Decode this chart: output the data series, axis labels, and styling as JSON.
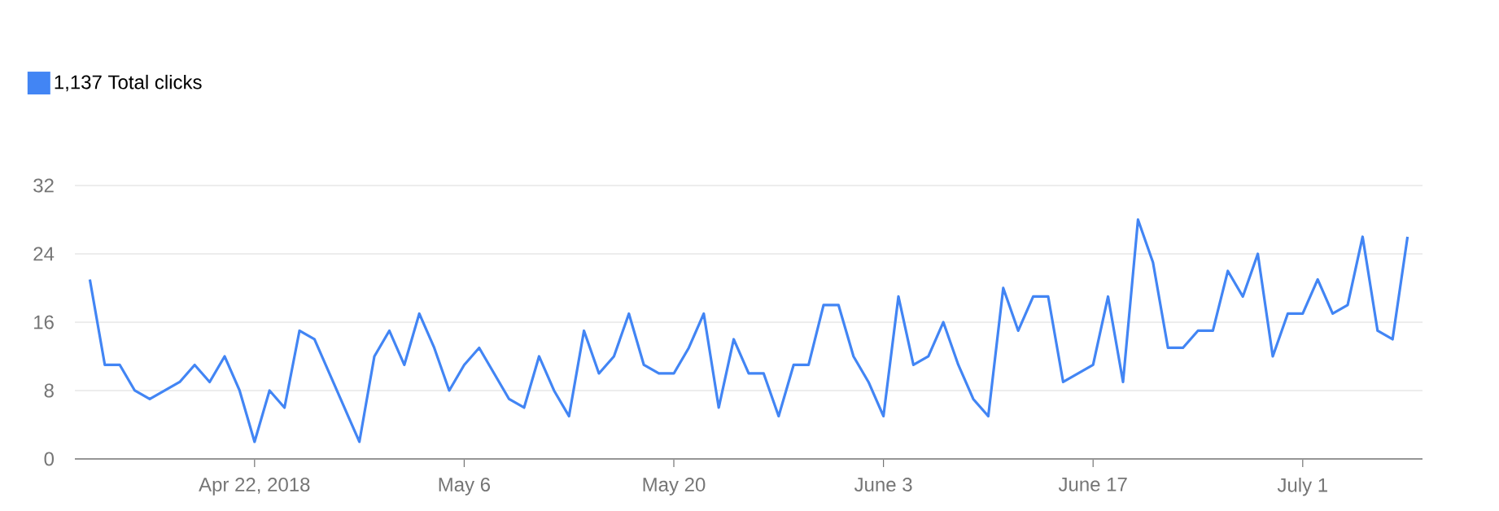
{
  "chart_data": {
    "type": "line",
    "x": [
      "2018-04-11",
      "2018-04-12",
      "2018-04-13",
      "2018-04-14",
      "2018-04-15",
      "2018-04-16",
      "2018-04-17",
      "2018-04-18",
      "2018-04-19",
      "2018-04-20",
      "2018-04-21",
      "2018-04-22",
      "2018-04-23",
      "2018-04-24",
      "2018-04-25",
      "2018-04-26",
      "2018-04-27",
      "2018-04-28",
      "2018-04-29",
      "2018-04-30",
      "2018-05-01",
      "2018-05-02",
      "2018-05-03",
      "2018-05-04",
      "2018-05-05",
      "2018-05-06",
      "2018-05-07",
      "2018-05-08",
      "2018-05-09",
      "2018-05-10",
      "2018-05-11",
      "2018-05-12",
      "2018-05-13",
      "2018-05-14",
      "2018-05-15",
      "2018-05-16",
      "2018-05-17",
      "2018-05-18",
      "2018-05-19",
      "2018-05-20",
      "2018-05-21",
      "2018-05-22",
      "2018-05-23",
      "2018-05-24",
      "2018-05-25",
      "2018-05-26",
      "2018-05-27",
      "2018-05-28",
      "2018-05-29",
      "2018-05-30",
      "2018-05-31",
      "2018-06-01",
      "2018-06-02",
      "2018-06-03",
      "2018-06-04",
      "2018-06-05",
      "2018-06-06",
      "2018-06-07",
      "2018-06-08",
      "2018-06-09",
      "2018-06-10",
      "2018-06-11",
      "2018-06-12",
      "2018-06-13",
      "2018-06-14",
      "2018-06-15",
      "2018-06-16",
      "2018-06-17",
      "2018-06-18",
      "2018-06-19",
      "2018-06-20",
      "2018-06-21",
      "2018-06-22",
      "2018-06-23",
      "2018-06-24",
      "2018-06-25",
      "2018-06-26",
      "2018-06-27",
      "2018-06-28",
      "2018-06-29",
      "2018-06-30",
      "2018-07-01",
      "2018-07-02",
      "2018-07-03",
      "2018-07-04",
      "2018-07-05",
      "2018-07-06",
      "2018-07-07",
      "2018-07-08"
    ],
    "series": [
      {
        "name": "1,137 Total clicks",
        "color": "#4285f4",
        "values": [
          21,
          11,
          11,
          8,
          7,
          8,
          9,
          11,
          9,
          12,
          8,
          2,
          8,
          6,
          15,
          14,
          10,
          6,
          2,
          12,
          15,
          11,
          17,
          13,
          8,
          11,
          13,
          10,
          7,
          6,
          12,
          8,
          5,
          15,
          10,
          12,
          17,
          11,
          10,
          10,
          13,
          17,
          6,
          14,
          10,
          10,
          5,
          11,
          11,
          18,
          18,
          12,
          9,
          5,
          19,
          11,
          12,
          16,
          11,
          7,
          5,
          20,
          15,
          19,
          19,
          9,
          10,
          11,
          19,
          9,
          28,
          23,
          13,
          13,
          15,
          15,
          22,
          19,
          24,
          12,
          17,
          17,
          21,
          17,
          18,
          26,
          15,
          14,
          26
        ]
      }
    ],
    "xlim": [
      "2018-04-10",
      "2018-07-09"
    ],
    "xticks": [
      {
        "value": "2018-04-22",
        "label": "Apr 22, 2018"
      },
      {
        "value": "2018-05-06",
        "label": "May 6"
      },
      {
        "value": "2018-05-20",
        "label": "May 20"
      },
      {
        "value": "2018-06-03",
        "label": "June 3"
      },
      {
        "value": "2018-06-17",
        "label": "June 17"
      },
      {
        "value": "2018-07-01",
        "label": "July 1"
      }
    ],
    "ylim": [
      0,
      32
    ],
    "yticks": [
      0,
      8,
      16,
      24,
      32
    ],
    "grid": "y",
    "legend": "top left",
    "marker": "none",
    "line_style": "solid"
  }
}
